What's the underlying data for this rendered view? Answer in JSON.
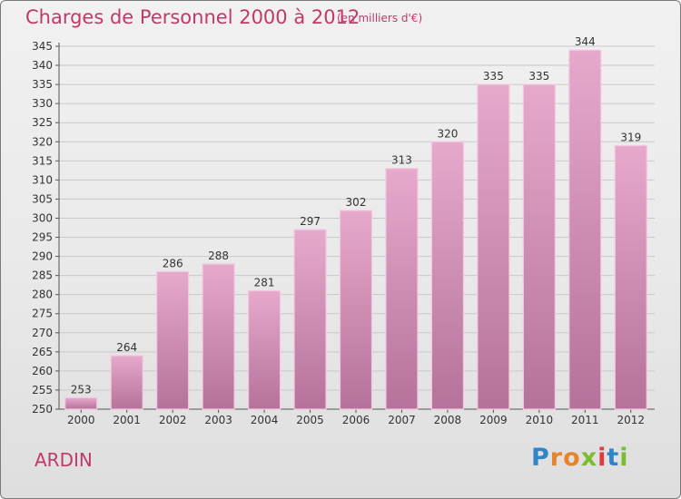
{
  "header": {
    "title": "Charges de Personnel 2000 à 2012",
    "subtitle": "(en milliers d'€)"
  },
  "footer": {
    "commune": "ARDIN",
    "logo": {
      "letters": [
        "P",
        "r",
        "o",
        "x",
        "i",
        "t",
        "i"
      ],
      "colors": [
        "#2e86c8",
        "#e8852b",
        "#e8852b",
        "#7bbd2f",
        "#e23a3a",
        "#2e86c8",
        "#7bbd2f"
      ]
    }
  },
  "chart_data": {
    "type": "bar",
    "title": "Charges de Personnel 2000 à 2012",
    "subtitle": "(en milliers d'€)",
    "categories": [
      "2000",
      "2001",
      "2002",
      "2003",
      "2004",
      "2005",
      "2006",
      "2007",
      "2008",
      "2009",
      "2010",
      "2011",
      "2012"
    ],
    "values": [
      253,
      264,
      286,
      288,
      281,
      297,
      302,
      313,
      320,
      335,
      335,
      344,
      319
    ],
    "ylim": [
      250,
      345
    ],
    "yticks": [
      "250",
      "255",
      "260",
      "265",
      "270",
      "275",
      "280",
      "285",
      "290",
      "295",
      "300",
      "305",
      "310",
      "315",
      "320",
      "325",
      "330",
      "335",
      "340",
      "345"
    ],
    "xlabel": "",
    "ylabel": "",
    "grid": true,
    "bar_color": "#d98fba",
    "text_color": "#c0396b"
  }
}
